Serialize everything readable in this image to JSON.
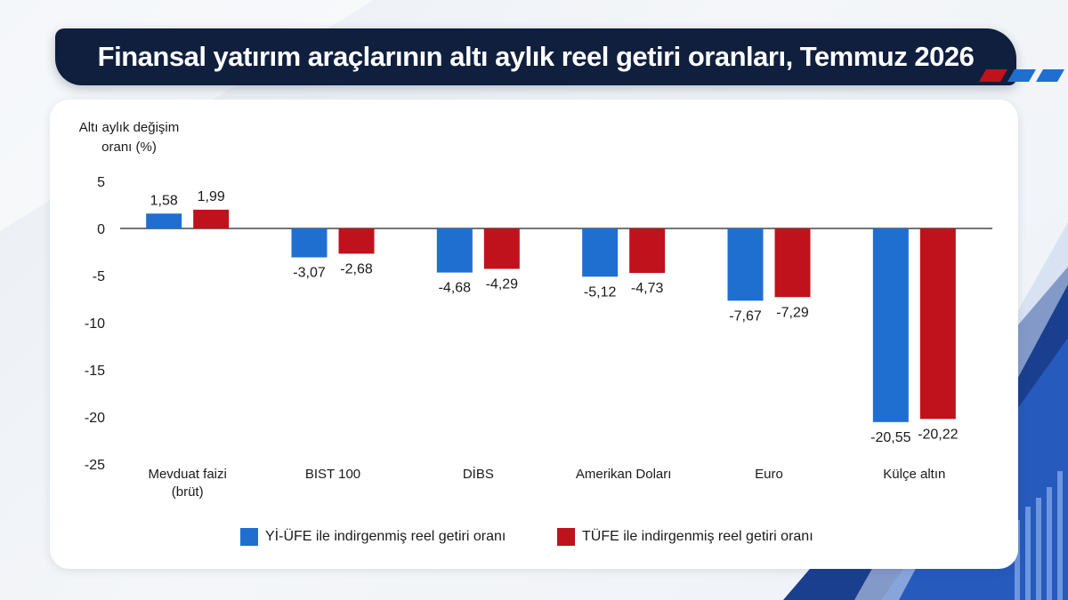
{
  "title": "Finansal yatırım araçlarının altı aylık reel getiri oranları, Temmuz 2026",
  "colors": {
    "series1": "#1f6fd0",
    "series2": "#c0121c",
    "banner": "#0f1f3d",
    "accent_stripes": [
      "#c0121c",
      "#1f6fd0",
      "#1f6fd0"
    ]
  },
  "legend": {
    "series1_label": "Yİ-ÜFE ile indirgenmiş reel getiri oranı",
    "series2_label": "TÜFE ile indirgenmiş reel getiri oranı"
  },
  "chart_data": {
    "type": "bar",
    "title": "",
    "ylabel_lines": [
      "Altı aylık değişim",
      "oranı (%)"
    ],
    "xlabel": "",
    "ylim": [
      -25,
      5
    ],
    "yticks": [
      5,
      0,
      -5,
      -10,
      -15,
      -20,
      -25
    ],
    "grid": false,
    "legend_position": "bottom",
    "categories": [
      [
        "Mevduat faizi",
        "(brüt)"
      ],
      [
        "BIST 100"
      ],
      [
        "DİBS"
      ],
      [
        "Amerikan Doları"
      ],
      [
        "Euro"
      ],
      [
        "Külçe altın"
      ]
    ],
    "series": [
      {
        "name": "Yİ-ÜFE ile indirgenmiş reel getiri oranı",
        "values": [
          1.58,
          -3.07,
          -4.68,
          -5.12,
          -7.67,
          -20.55
        ],
        "labels": [
          "1,58",
          "-3,07",
          "-4,68",
          "-5,12",
          "-7,67",
          "-20,55"
        ]
      },
      {
        "name": "TÜFE ile indirgenmiş reel getiri oranı",
        "values": [
          1.99,
          -2.68,
          -4.29,
          -4.73,
          -7.29,
          -20.22
        ],
        "labels": [
          "1,99",
          "-2,68",
          "-4,29",
          "-4,73",
          "-7,29",
          "-20,22"
        ]
      }
    ]
  }
}
